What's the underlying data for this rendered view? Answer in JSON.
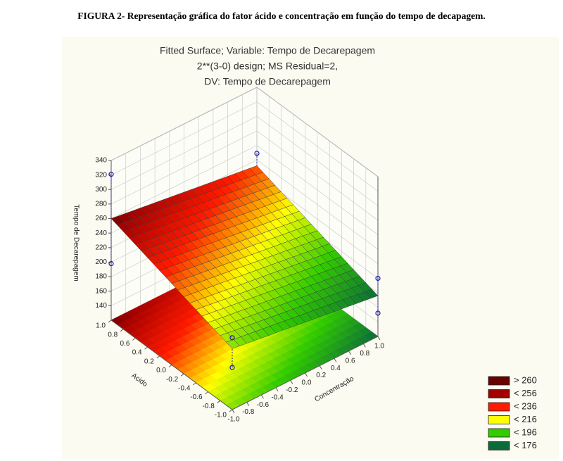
{
  "caption": "FIGURA 2- Representação gráfica do fator ácido e concentração em função do tempo de decapagem.",
  "chart_data": {
    "type": "surface3d",
    "title": [
      "Fitted Surface; Variable: Tempo de Decarepagem",
      "2**(3-0) design; MS Residual=2,",
      "DV: Tempo de Decarepagem"
    ],
    "zlabel": "Tempo de Decarepagem",
    "xlabel": "Acido",
    "ylabel": "Concentração",
    "zlim": [
      120,
      340
    ],
    "zticks": [
      140,
      160,
      180,
      200,
      220,
      240,
      260,
      280,
      300,
      320,
      340
    ],
    "xlim": [
      -1,
      1
    ],
    "xticks": [
      {
        "value": 1,
        "label": "1.0"
      },
      0.8,
      0.6,
      0.4,
      0.2,
      {
        "value": 0,
        "label": "0.0"
      },
      -0.2,
      -0.4,
      -0.6,
      -0.8,
      {
        "value": -1,
        "label": "-1.0"
      }
    ],
    "ylim": [
      -1,
      1
    ],
    "yticks": [
      {
        "value": -1,
        "label": "-1.0"
      },
      -0.8,
      -0.6,
      -0.4,
      -0.2,
      {
        "value": 0,
        "label": "0.0"
      },
      0.2,
      0.4,
      0.6,
      0.8,
      {
        "value": 1,
        "label": "1.0"
      }
    ],
    "grid": true,
    "surface": {
      "acido": [
        -1,
        1
      ],
      "concentracao": [
        -1,
        1
      ],
      "z": [
        [
          204,
          176
        ],
        [
          260,
          232
        ]
      ]
    },
    "points": [
      {
        "acido": 1,
        "concentracao": -1,
        "z": 321
      },
      {
        "acido": 1,
        "concentracao": -1,
        "z": 198
      },
      {
        "acido": 1,
        "concentracao": 1,
        "z": 249
      },
      {
        "acido": -1,
        "concentracao": 1,
        "z": 200
      },
      {
        "acido": -1,
        "concentracao": 1,
        "z": 152
      },
      {
        "acido": -1,
        "concentracao": -1,
        "z": 219
      },
      {
        "acido": -1,
        "concentracao": -1,
        "z": 178
      }
    ],
    "point_color": "#1a1aa0",
    "legend": [
      {
        "label": "> 260",
        "value": 260,
        "color": "#6a0000"
      },
      {
        "label": "< 256",
        "value": 256,
        "color": "#a00000"
      },
      {
        "label": "< 236",
        "value": 236,
        "color": "#ff1a00"
      },
      {
        "label": "< 216",
        "value": 216,
        "color": "#ffff00"
      },
      {
        "label": "< 196",
        "value": 196,
        "color": "#33cc00"
      },
      {
        "label": "< 176",
        "value": 176,
        "color": "#0b6b3a"
      }
    ]
  }
}
